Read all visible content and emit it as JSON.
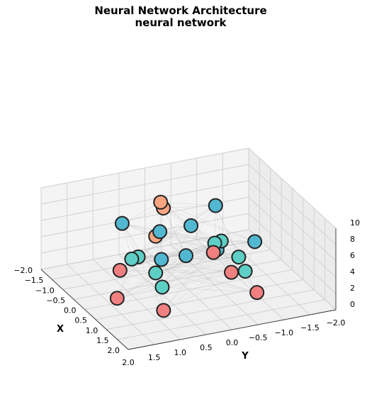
{
  "chart_data": {
    "type": "scatter",
    "projection": "3d",
    "title": "Neural Network Architecture",
    "subtitle": "neural network",
    "xlabel": "X",
    "ylabel": "Y",
    "zlabel": "",
    "xlim": [
      -2.0,
      2.0
    ],
    "ylim": [
      -2.0,
      2.0
    ],
    "zlim": [
      0,
      10
    ],
    "x_ticks": [
      "2.0",
      "1.5",
      "1.0",
      "0.5",
      "0.0",
      "−0.5",
      "−1.0",
      "−1.5",
      "−2.0"
    ],
    "y_ticks": [
      "2.0",
      "1.5",
      "1.0",
      "0.5",
      "0.0",
      "−0.5",
      "−1.0",
      "−1.5",
      "−2.0"
    ],
    "z_ticks": [
      "0",
      "2",
      "4",
      "6",
      "8",
      "10"
    ],
    "grid": true,
    "series": [
      {
        "color": "#f08080",
        "points": [
          [
            1.0,
            0.9,
            1.0
          ],
          [
            1.0,
            -0.9,
            1.0
          ],
          [
            -1.0,
            0.9,
            1.0
          ],
          [
            -1.0,
            -0.9,
            1.0
          ],
          [
            0.3,
            1.5,
            1.5
          ],
          [
            0.3,
            -0.7,
            2.0
          ]
        ]
      },
      {
        "color": "#5ecfc4",
        "points": [
          [
            0.7,
            0.8,
            3.0
          ],
          [
            0.7,
            -0.8,
            3.0
          ],
          [
            -0.7,
            0.8,
            3.0
          ],
          [
            -0.7,
            -0.8,
            3.0
          ],
          [
            0.4,
            0.8,
            4.0
          ],
          [
            0.4,
            -0.8,
            4.0
          ],
          [
            -0.4,
            0.8,
            4.0
          ],
          [
            -0.4,
            -0.8,
            4.0
          ]
        ]
      },
      {
        "color": "#52b7d0",
        "points": [
          [
            -0.6,
            0.3,
            6.0
          ],
          [
            -0.6,
            -0.3,
            6.0
          ],
          [
            0.6,
            0.3,
            6.0
          ],
          [
            0.6,
            -0.3,
            6.0
          ],
          [
            0.9,
            0.9,
            7.0
          ],
          [
            0.9,
            -0.9,
            7.0
          ],
          [
            -0.9,
            0.9,
            7.0
          ],
          [
            -0.9,
            -0.9,
            7.0
          ]
        ]
      },
      {
        "color": "#f9a582",
        "points": [
          [
            0.4,
            0.8,
            8.5
          ],
          [
            -0.8,
            0.2,
            9.0
          ],
          [
            -0.2,
            0.4,
            10.0
          ]
        ]
      }
    ]
  }
}
